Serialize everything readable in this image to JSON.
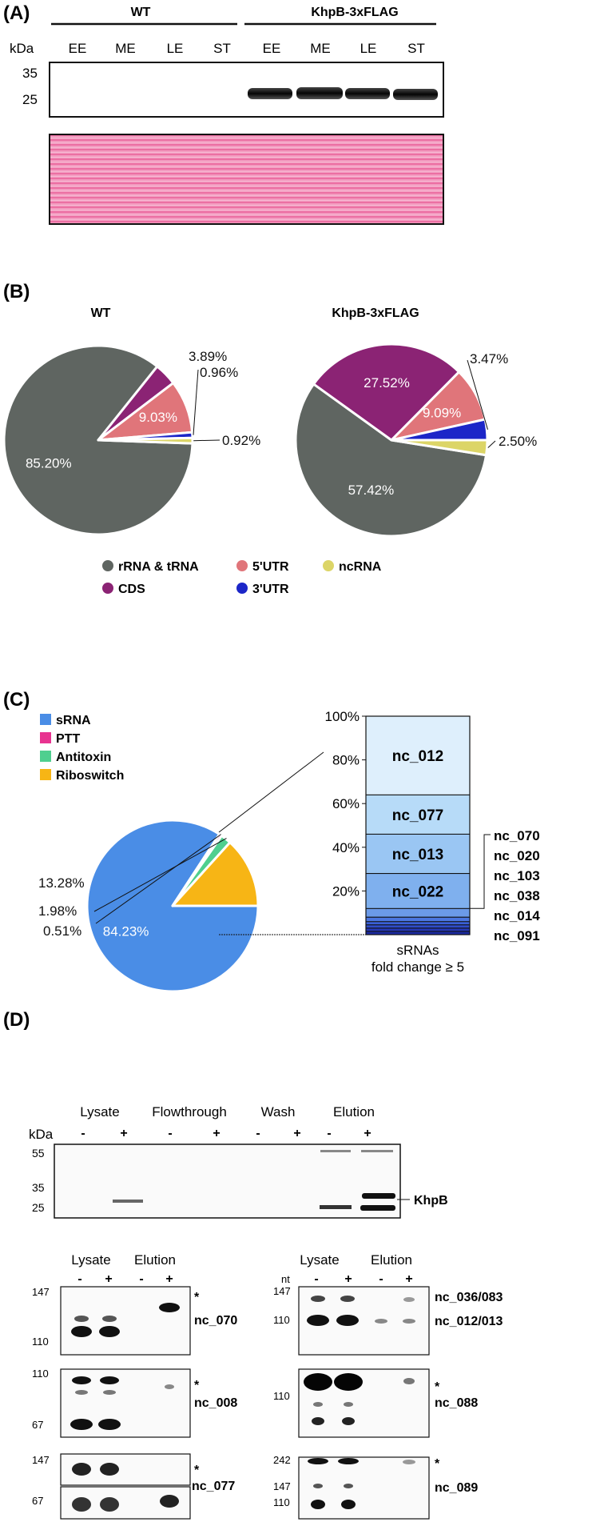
{
  "panels": {
    "a": "(A)",
    "b": "(B)",
    "c": "(C)",
    "d": "(D)"
  },
  "a": {
    "groups": [
      "WT",
      "KhpB-3xFLAG"
    ],
    "kda_label": "kDa",
    "lanes": [
      "EE",
      "ME",
      "LE",
      "ST",
      "EE",
      "ME",
      "LE",
      "ST"
    ],
    "markers": [
      "35",
      "25"
    ]
  },
  "b": {
    "chart_data": [
      {
        "type": "pie",
        "title": "WT",
        "categories": [
          "rRNA & tRNA",
          "CDS",
          "5'UTR",
          "3'UTR",
          "ncRNA"
        ],
        "values": [
          85.2,
          3.89,
          9.03,
          0.96,
          0.92
        ],
        "labels": [
          "85.20%",
          "3.89%",
          "9.03%",
          "0.96%",
          "0.92%"
        ]
      },
      {
        "type": "pie",
        "title": "KhpB-3xFLAG",
        "categories": [
          "rRNA & tRNA",
          "CDS",
          "5'UTR",
          "3'UTR",
          "ncRNA"
        ],
        "values": [
          57.42,
          27.52,
          9.09,
          3.47,
          2.5
        ],
        "labels": [
          "57.42%",
          "27.52%",
          "9.09%",
          "3.47%",
          "2.50%"
        ]
      }
    ],
    "legend": [
      {
        "label": "rRNA & tRNA",
        "color": "#5f6561"
      },
      {
        "label": "5'UTR",
        "color": "#e0757a"
      },
      {
        "label": "ncRNA",
        "color": "#dcd567"
      },
      {
        "label": "CDS",
        "color": "#8b2374"
      },
      {
        "label": "3'UTR",
        "color": "#1c26c8"
      }
    ],
    "colors": {
      "rrna": "#5f6561",
      "cds": "#8b2374",
      "utr5": "#e0757a",
      "utr3": "#1c26c8",
      "ncrna": "#dcd567"
    }
  },
  "c": {
    "legend": [
      {
        "label": "sRNA",
        "color": "#4a8de6"
      },
      {
        "label": "PTT",
        "color": "#e83390"
      },
      {
        "label": "Antitoxin",
        "color": "#4fcf8f"
      },
      {
        "label": "Riboswitch",
        "color": "#f7b515"
      }
    ],
    "pie": {
      "type": "pie",
      "categories": [
        "sRNA",
        "PTT",
        "Antitoxin",
        "Riboswitch"
      ],
      "values": [
        84.23,
        0.51,
        1.98,
        13.28
      ],
      "labels": [
        "84.23%",
        "0.51%",
        "1.98%",
        "13.28%"
      ]
    },
    "stack": {
      "type": "bar",
      "yticks": [
        "100%",
        "80%",
        "60%",
        "40%",
        "20%"
      ],
      "ylim": [
        0,
        100
      ],
      "segments": [
        {
          "name": "nc_091",
          "from": 0,
          "to": 1.5
        },
        {
          "name": "nc_014",
          "from": 1.5,
          "to": 3
        },
        {
          "name": "nc_038",
          "from": 3,
          "to": 4.5
        },
        {
          "name": "nc_103",
          "from": 4.5,
          "to": 6
        },
        {
          "name": "nc_020",
          "from": 6,
          "to": 8
        },
        {
          "name": "nc_070",
          "from": 8,
          "to": 12
        },
        {
          "name": "nc_022",
          "from": 12,
          "to": 28
        },
        {
          "name": "nc_013",
          "from": 28,
          "to": 46
        },
        {
          "name": "nc_077",
          "from": 46,
          "to": 64
        },
        {
          "name": "nc_012",
          "from": 64,
          "to": 100
        }
      ],
      "side_labels": [
        "nc_070",
        "nc_020",
        "nc_103",
        "nc_038",
        "nc_014",
        "nc_091"
      ],
      "xlabel_line1": "sRNAs",
      "xlabel_line2": "fold change ≥ 5"
    }
  },
  "d": {
    "top_headers": [
      "Lysate",
      "Flowthrough",
      "Wash",
      "Elution"
    ],
    "signs": [
      "-",
      "+",
      "-",
      "+",
      "-",
      "+",
      "-",
      "+"
    ],
    "kda_label": "kDa",
    "markers": [
      "55",
      "35",
      "25"
    ],
    "protein": "KhpB",
    "north_headers": [
      "Lysate",
      "Elution"
    ],
    "north_signs": [
      "-",
      "+",
      "-",
      "+"
    ],
    "nt_label": "nt",
    "star": "*",
    "blots_left": [
      {
        "name": "nc_070",
        "markers": [
          "147",
          "110"
        ]
      },
      {
        "name": "nc_008",
        "markers": [
          "110",
          "67"
        ]
      },
      {
        "name": "nc_077",
        "markers": [
          "147",
          "67"
        ]
      }
    ],
    "blots_right": [
      {
        "name": "nc_036/083",
        "name2": "nc_012/013",
        "markers": [
          "147",
          "110"
        ]
      },
      {
        "name": "nc_088",
        "markers": [
          "110"
        ]
      },
      {
        "name": "nc_089",
        "markers": [
          "242",
          "147",
          "110"
        ]
      }
    ]
  }
}
